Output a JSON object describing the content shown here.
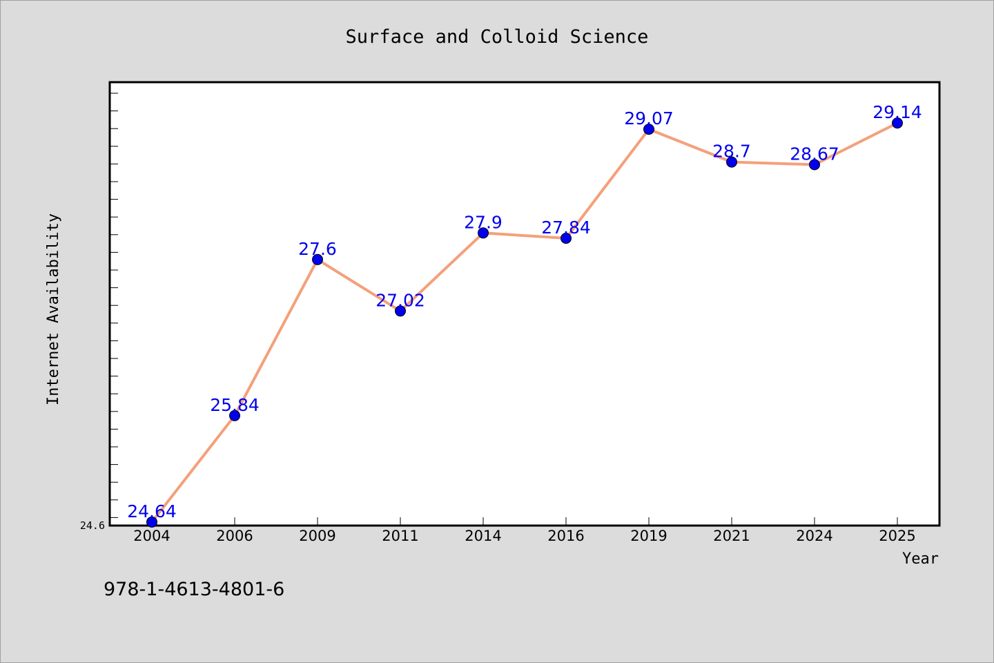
{
  "chart_data": {
    "type": "line",
    "title": "Surface and Colloid Science",
    "xlabel": "Year",
    "ylabel": "Internet Availability",
    "categories": [
      "2004",
      "2006",
      "2009",
      "2011",
      "2014",
      "2016",
      "2019",
      "2021",
      "2024",
      "2025"
    ],
    "series": [
      {
        "values": [
          24.64,
          25.84,
          27.6,
          27.02,
          27.9,
          27.84,
          29.07,
          28.7,
          28.67,
          29.14
        ]
      }
    ],
    "data_labels": [
      "24.64",
      "25.84",
      "27.6",
      "27.02",
      "27.9",
      "27.84",
      "29.07",
      "28.7",
      "28.67",
      "29.14"
    ],
    "ytick_labels": [
      "24.6"
    ],
    "ylim": [
      24.6,
      29.6
    ],
    "grid": false,
    "line_color": "#f4a07a",
    "marker_color": "#0000ee",
    "label_color": "#0000ee"
  },
  "footer": {
    "isbn": "978-1-4613-4801-6"
  }
}
